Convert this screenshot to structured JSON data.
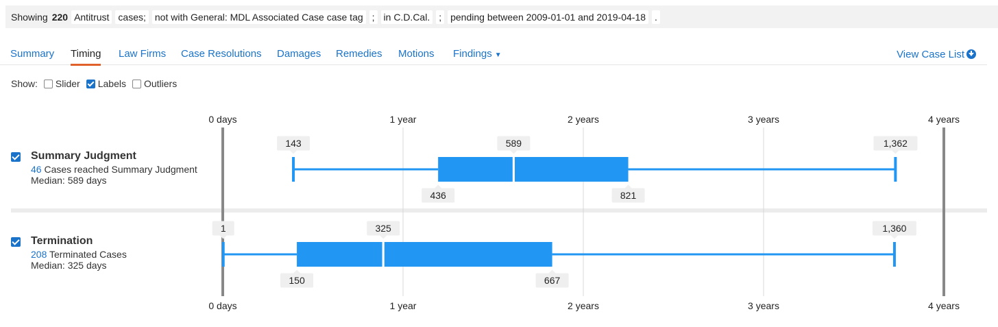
{
  "filter": {
    "showing_label": "Showing",
    "count": "220",
    "case_type": "Antitrust",
    "cases_word": "cases;",
    "tag_filter": "not with General: MDL Associated Case case tag",
    "semicolon": ";",
    "court_filter": "in C.D.Cal.",
    "date_filter": "pending between 2009-01-01 and 2019-04-18",
    "period": "."
  },
  "tabs": [
    {
      "label": "Summary",
      "active": false
    },
    {
      "label": "Timing",
      "active": true
    },
    {
      "label": "Law Firms",
      "active": false
    },
    {
      "label": "Case Resolutions",
      "active": false
    },
    {
      "label": "Damages",
      "active": false
    },
    {
      "label": "Remedies",
      "active": false
    },
    {
      "label": "Motions",
      "active": false
    },
    {
      "label": "Findings",
      "active": false,
      "dropdown": true
    }
  ],
  "view_case_list": "View Case List",
  "show": {
    "label": "Show:",
    "options": [
      {
        "label": "Slider",
        "checked": false
      },
      {
        "label": "Labels",
        "checked": true
      },
      {
        "label": "Outliers",
        "checked": false
      }
    ]
  },
  "rows": [
    {
      "title": "Summary Judgment",
      "count": "46",
      "count_text": "Cases reached Summary Judgment",
      "median_text": "Median: 589 days",
      "checked": true
    },
    {
      "title": "Termination",
      "count": "208",
      "count_text": "Terminated Cases",
      "median_text": "Median: 325 days",
      "checked": true
    }
  ],
  "chart_data": {
    "type": "boxplot",
    "unit": "days",
    "axis": {
      "ticks": [
        {
          "label": "0 days",
          "value": 0
        },
        {
          "label": "1 year",
          "value": 365
        },
        {
          "label": "2 years",
          "value": 730
        },
        {
          "label": "3 years",
          "value": 1095
        },
        {
          "label": "4 years",
          "value": 1460
        }
      ],
      "range": [
        0,
        1460
      ]
    },
    "series": [
      {
        "name": "Summary Judgment",
        "min": 143,
        "q1": 436,
        "median": 589,
        "q3": 821,
        "max": 1362,
        "labels": {
          "min": "143",
          "q1": "436",
          "median": "589",
          "q3": "821",
          "max": "1,362"
        }
      },
      {
        "name": "Termination",
        "min": 1,
        "q1": 150,
        "median": 325,
        "q3": 667,
        "max": 1360,
        "labels": {
          "min": "1",
          "q1": "150",
          "median": "325",
          "q3": "667",
          "max": "1,360"
        }
      }
    ],
    "colors": {
      "box": "#2196f3",
      "axis_bar": "#888888",
      "grid": "#d8d8d8",
      "label_bg": "#efefef"
    }
  }
}
